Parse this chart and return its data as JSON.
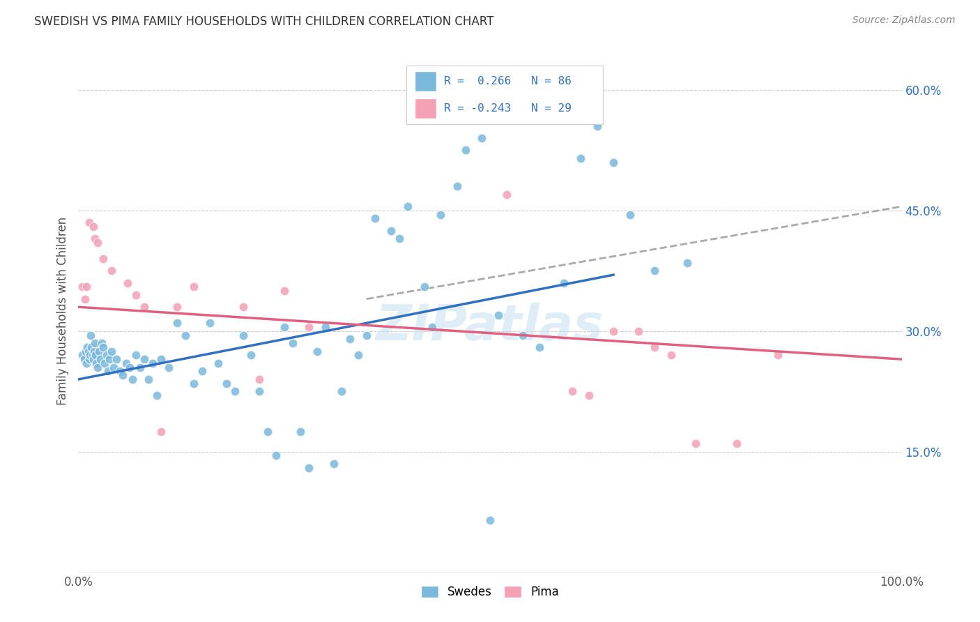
{
  "title": "SWEDISH VS PIMA FAMILY HOUSEHOLDS WITH CHILDREN CORRELATION CHART",
  "source": "Source: ZipAtlas.com",
  "ylabel": "Family Households with Children",
  "xlim": [
    0.0,
    1.0
  ],
  "ylim": [
    0.0,
    0.65
  ],
  "ytick_positions": [
    0.15,
    0.3,
    0.45,
    0.6
  ],
  "ytick_labels": [
    "15.0%",
    "30.0%",
    "45.0%",
    "60.0%"
  ],
  "swedes_color": "#7ab8dc",
  "pima_color": "#f4a0b5",
  "swedes_line_color": "#3070c0",
  "pima_line_color": "#e06080",
  "dashed_line_color": "#aaaaaa",
  "background_color": "#ffffff",
  "watermark": "ZIPatlas",
  "swedes_x": [
    0.005,
    0.007,
    0.009,
    0.01,
    0.011,
    0.012,
    0.013,
    0.014,
    0.015,
    0.016,
    0.017,
    0.018,
    0.019,
    0.02,
    0.021,
    0.022,
    0.023,
    0.025,
    0.027,
    0.028,
    0.03,
    0.032,
    0.034,
    0.036,
    0.038,
    0.04,
    0.043,
    0.046,
    0.05,
    0.054,
    0.058,
    0.062,
    0.066,
    0.07,
    0.075,
    0.08,
    0.085,
    0.09,
    0.095,
    0.1,
    0.11,
    0.12,
    0.13,
    0.14,
    0.15,
    0.16,
    0.17,
    0.18,
    0.19,
    0.2,
    0.21,
    0.22,
    0.23,
    0.24,
    0.25,
    0.26,
    0.27,
    0.28,
    0.29,
    0.3,
    0.31,
    0.32,
    0.33,
    0.34,
    0.35,
    0.36,
    0.38,
    0.39,
    0.4,
    0.42,
    0.43,
    0.44,
    0.46,
    0.47,
    0.49,
    0.5,
    0.51,
    0.54,
    0.56,
    0.59,
    0.61,
    0.63,
    0.65,
    0.67,
    0.7,
    0.74
  ],
  "swedes_y": [
    0.27,
    0.265,
    0.275,
    0.26,
    0.28,
    0.275,
    0.265,
    0.27,
    0.295,
    0.28,
    0.27,
    0.265,
    0.275,
    0.285,
    0.27,
    0.26,
    0.255,
    0.275,
    0.265,
    0.285,
    0.28,
    0.26,
    0.27,
    0.25,
    0.265,
    0.275,
    0.255,
    0.265,
    0.25,
    0.245,
    0.26,
    0.255,
    0.24,
    0.27,
    0.255,
    0.265,
    0.24,
    0.26,
    0.22,
    0.265,
    0.255,
    0.31,
    0.295,
    0.235,
    0.25,
    0.31,
    0.26,
    0.235,
    0.225,
    0.295,
    0.27,
    0.225,
    0.175,
    0.145,
    0.305,
    0.285,
    0.175,
    0.13,
    0.275,
    0.305,
    0.135,
    0.225,
    0.29,
    0.27,
    0.295,
    0.44,
    0.425,
    0.415,
    0.455,
    0.355,
    0.305,
    0.445,
    0.48,
    0.525,
    0.54,
    0.065,
    0.32,
    0.295,
    0.28,
    0.36,
    0.515,
    0.555,
    0.51,
    0.445,
    0.375,
    0.385
  ],
  "pima_x": [
    0.005,
    0.008,
    0.01,
    0.013,
    0.018,
    0.02,
    0.023,
    0.03,
    0.04,
    0.06,
    0.07,
    0.08,
    0.1,
    0.12,
    0.14,
    0.2,
    0.22,
    0.25,
    0.28,
    0.52,
    0.6,
    0.62,
    0.65,
    0.68,
    0.7,
    0.72,
    0.75,
    0.8,
    0.85
  ],
  "pima_y": [
    0.355,
    0.34,
    0.355,
    0.435,
    0.43,
    0.415,
    0.41,
    0.39,
    0.375,
    0.36,
    0.345,
    0.33,
    0.175,
    0.33,
    0.355,
    0.33,
    0.24,
    0.35,
    0.305,
    0.47,
    0.225,
    0.22,
    0.3,
    0.3,
    0.28,
    0.27,
    0.16,
    0.16,
    0.27
  ],
  "swedes_line_x0": 0.0,
  "swedes_line_y0": 0.24,
  "swedes_line_x1": 0.65,
  "swedes_line_y1": 0.37,
  "pima_line_x0": 0.0,
  "pima_line_y0": 0.33,
  "pima_line_x1": 1.0,
  "pima_line_y1": 0.265,
  "dash_line_x0": 0.35,
  "dash_line_y0": 0.34,
  "dash_line_x1": 1.0,
  "dash_line_y1": 0.455
}
